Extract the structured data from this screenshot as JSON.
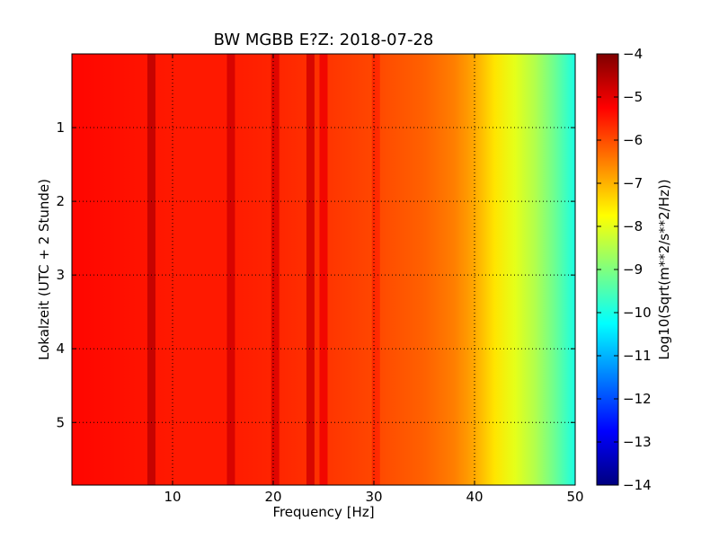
{
  "chart_data": {
    "type": "heatmap",
    "title": "BW MGBB E?Z: 2018-07-28",
    "xlabel": "Frequency [Hz]",
    "ylabel": "Lokalzeit (UTC + 2 Stunde)",
    "xlim": [
      0,
      50
    ],
    "ylim": [
      5.85,
      0
    ],
    "x_ticks": [
      10,
      20,
      30,
      40,
      50
    ],
    "y_ticks": [
      1,
      2,
      3,
      4,
      5
    ],
    "grid": true,
    "colormap": "jet",
    "colorbar": {
      "label": "Log10(Sqrt(m**2/s**2/Hz))",
      "range": [
        -14,
        -4
      ],
      "ticks": [
        -4,
        -5,
        -6,
        -7,
        -8,
        -9,
        -10,
        -11,
        -12,
        -13,
        -14
      ]
    },
    "spectral_profile": {
      "frequency_hz": [
        0,
        5,
        10,
        15,
        20,
        25,
        30,
        35,
        38,
        40,
        42,
        44,
        46,
        48,
        50
      ],
      "log10_amplitude": [
        -5.3,
        -5.4,
        -5.5,
        -5.5,
        -5.6,
        -5.75,
        -5.95,
        -6.2,
        -6.5,
        -6.9,
        -7.5,
        -8.0,
        -8.5,
        -9.2,
        -10.0
      ]
    },
    "spectral_lines": [
      {
        "frequency_hz": 7.9,
        "log10_amplitude": -4.6
      },
      {
        "frequency_hz": 15.8,
        "log10_amplitude": -4.8
      },
      {
        "frequency_hz": 20.2,
        "log10_amplitude": -4.9
      },
      {
        "frequency_hz": 23.7,
        "log10_amplitude": -4.8
      },
      {
        "frequency_hz": 25.0,
        "log10_amplitude": -5.1
      },
      {
        "frequency_hz": 30.2,
        "log10_amplitude": -5.6
      }
    ]
  },
  "colors": {
    "jet": [
      "#00007f",
      "#0000ff",
      "#007fff",
      "#00ffff",
      "#7fff7f",
      "#ffff00",
      "#ff7f00",
      "#ff0000",
      "#7f0000"
    ]
  }
}
